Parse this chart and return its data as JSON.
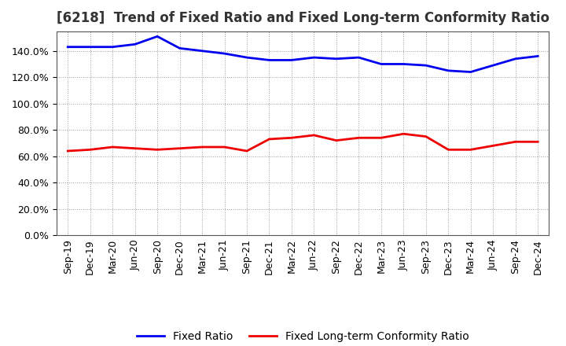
{
  "title": "[6218]  Trend of Fixed Ratio and Fixed Long-term Conformity Ratio",
  "labels": [
    "Sep-19",
    "Dec-19",
    "Mar-20",
    "Jun-20",
    "Sep-20",
    "Dec-20",
    "Mar-21",
    "Jun-21",
    "Sep-21",
    "Dec-21",
    "Mar-22",
    "Jun-22",
    "Sep-22",
    "Dec-22",
    "Mar-23",
    "Jun-23",
    "Sep-23",
    "Dec-23",
    "Mar-24",
    "Jun-24",
    "Sep-24",
    "Dec-24"
  ],
  "fixed_ratio": [
    143,
    143,
    143,
    145,
    151,
    142,
    140,
    138,
    135,
    133,
    133,
    135,
    134,
    135,
    130,
    130,
    129,
    125,
    124,
    129,
    134,
    136
  ],
  "fixed_lt_ratio": [
    64,
    65,
    67,
    66,
    65,
    66,
    67,
    67,
    64,
    73,
    74,
    76,
    72,
    74,
    74,
    77,
    75,
    65,
    65,
    68,
    71,
    71
  ],
  "line_color_fixed": "#0000EE",
  "line_color_lt": "#EE0000",
  "legend_fixed": "Fixed Ratio",
  "legend_lt": "Fixed Long-term Conformity Ratio",
  "ylim": [
    0,
    155
  ],
  "yticks": [
    0,
    20,
    40,
    60,
    80,
    100,
    120,
    140
  ],
  "background_color": "#FFFFFF",
  "grid_color": "#999999",
  "title_fontsize": 12,
  "tick_fontsize": 9,
  "legend_fontsize": 10
}
